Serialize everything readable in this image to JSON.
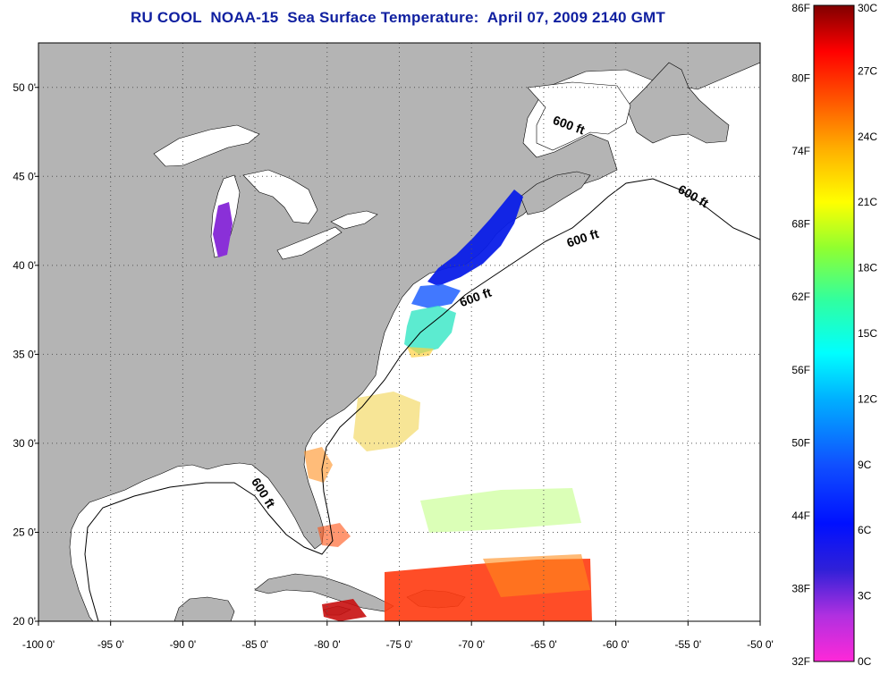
{
  "title": "RU COOL  NOAA-15  Sea Surface Temperature:  April 07, 2009 2140 GMT",
  "colors": {
    "land": "#b4b4b4",
    "ocean": "#ffffff",
    "lakes": "#ffffff",
    "grid": "#555555"
  },
  "map": {
    "lon_range": [
      -100,
      -50
    ],
    "lat_range": [
      20,
      52.5
    ],
    "x_ticks": [
      "-100 0'",
      "-95 0'",
      "-90 0'",
      "-85 0'",
      "-80 0'",
      "-75 0'",
      "-70 0'",
      "-65 0'",
      "-60 0'",
      "-55 0'",
      "-50 0'"
    ],
    "x_tick_values": [
      -100,
      -95,
      -90,
      -85,
      -80,
      -75,
      -70,
      -65,
      -60,
      -55,
      -50
    ],
    "y_ticks": [
      "50 0'",
      "45 0'",
      "40 0'",
      "35 0'",
      "30 0'",
      "25 0'",
      "20 0'"
    ],
    "y_tick_values": [
      50,
      45,
      40,
      35,
      30,
      25,
      20
    ],
    "grid": true,
    "contour_label": "600 ft"
  },
  "colorbar": {
    "left_labels": [
      "86F",
      "80F",
      "74F",
      "68F",
      "62F",
      "56F",
      "50F",
      "44F",
      "38F",
      "32F"
    ],
    "right_labels": [
      "30C",
      "27C",
      "24C",
      "21C",
      "18C",
      "15C",
      "12C",
      "9C",
      "6C",
      "3C",
      "0C"
    ],
    "range_c": [
      0,
      30
    ]
  }
}
